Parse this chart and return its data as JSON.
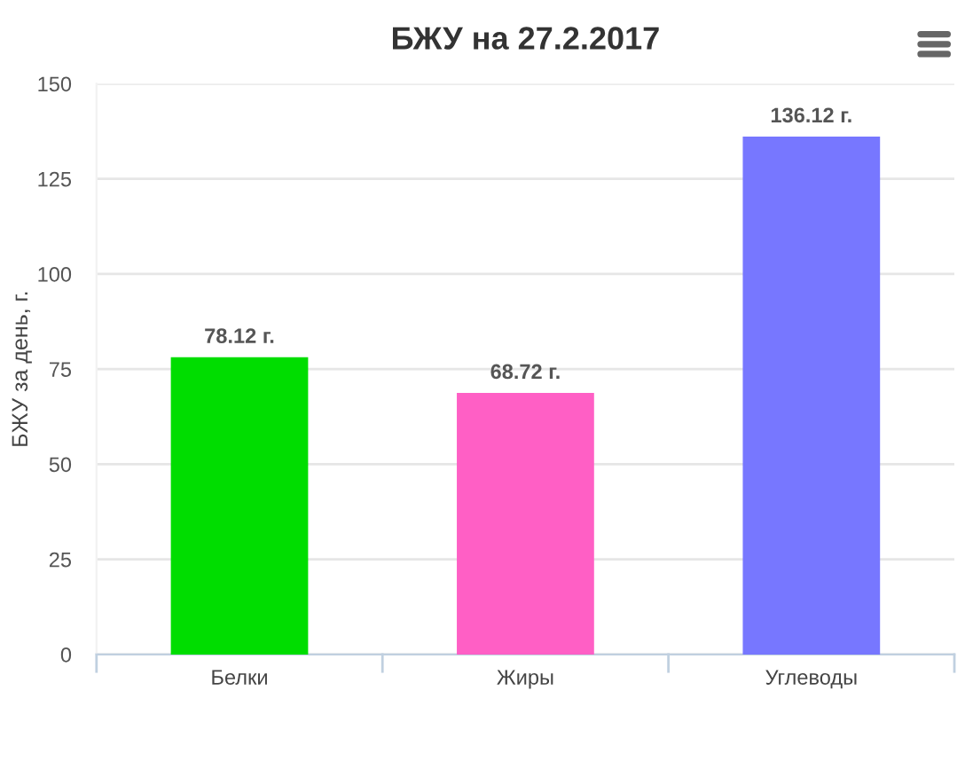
{
  "chart_data": {
    "type": "bar",
    "title": "БЖУ на 27.2.2017",
    "ylabel": "БЖУ за день, г.",
    "categories": [
      "Белки",
      "Жиры",
      "Углеводы"
    ],
    "values": [
      78.12,
      68.72,
      136.12
    ],
    "colors": [
      "#00dd00",
      "#ff5fc5",
      "#7777ff"
    ],
    "value_labels": [
      "78.12 г.",
      "68.72 г.",
      "136.12 г."
    ],
    "ylim": [
      0,
      150
    ],
    "yticks": [
      0,
      25,
      50,
      75,
      100,
      125,
      150
    ],
    "grid": "y",
    "legend": false
  }
}
